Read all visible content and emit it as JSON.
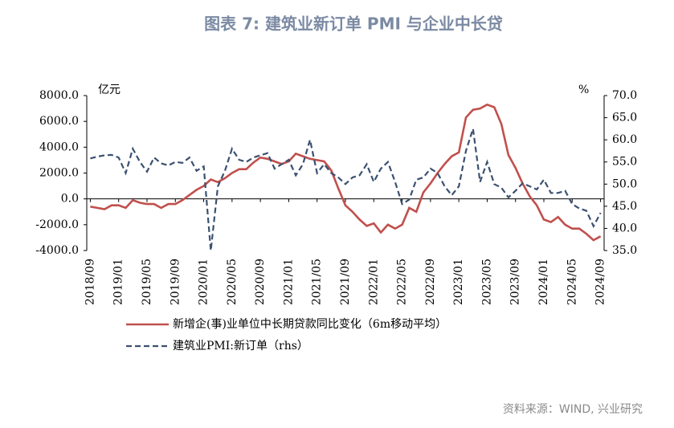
{
  "chart_data": {
    "type": "line",
    "title": "图表 7: 建筑业新订单 PMI 与企业中长贷",
    "y_unit": "亿元",
    "y2_unit": "%",
    "source": "资料来源：WIND, 兴业研究",
    "categories": [
      "2018/09",
      null,
      null,
      null,
      "2019/01",
      null,
      null,
      null,
      "2019/05",
      null,
      null,
      null,
      "2019/09",
      null,
      null,
      null,
      "2020/01",
      null,
      null,
      null,
      "2020/05",
      null,
      null,
      null,
      "2020/09",
      null,
      null,
      null,
      "2021/01",
      null,
      null,
      null,
      "2021/05",
      null,
      null,
      null,
      "2021/09",
      null,
      null,
      null,
      "2022/01",
      null,
      null,
      null,
      "2022/05",
      null,
      null,
      null,
      "2022/09",
      null,
      null,
      null,
      "2023/01",
      null,
      null,
      null,
      "2023/05",
      null,
      null,
      null,
      "2023/09",
      null,
      null,
      null,
      "2024/01",
      null,
      null,
      null,
      "2024/05",
      null,
      null,
      null,
      "2024/09"
    ],
    "series": [
      {
        "name": "新增企(事)业单位中长期贷款同比变化（6m移动平均）",
        "color": "#c0504d",
        "dash": false,
        "values": [
          -600,
          -700,
          -800,
          -500,
          -500,
          -700,
          -100,
          -300,
          -400,
          -400,
          -700,
          -400,
          -400,
          -100,
          300,
          700,
          1000,
          1500,
          1300,
          1600,
          2000,
          2300,
          2300,
          2800,
          3200,
          3100,
          2900,
          2700,
          2900,
          3500,
          3300,
          3100,
          3000,
          2900,
          2200,
          800,
          -500,
          -1000,
          -1600,
          -2100,
          -1900,
          -2600,
          -2000,
          -2300,
          -2000,
          -700,
          -1000,
          500,
          1200,
          2000,
          2700,
          3300,
          3600,
          6300,
          6900,
          7000,
          7300,
          7100,
          5800,
          3400,
          2400,
          1200,
          200,
          -500,
          -1600,
          -1800,
          -1400,
          -2000,
          -2300,
          -2300,
          -2700,
          -3200,
          -2900
        ]
      },
      {
        "name": "建筑业PMI:新订单（rhs）",
        "color": "#3b5170",
        "dash": true,
        "axis": "y2",
        "values": [
          55.8,
          56.2,
          56.5,
          56.6,
          56.0,
          52.5,
          58.0,
          55.0,
          52.8,
          56.0,
          54.7,
          54.2,
          55.0,
          54.8,
          56.0,
          53.0,
          54.0,
          35.0,
          49.5,
          53.0,
          58.0,
          55.5,
          55.0,
          56.0,
          56.5,
          57.0,
          53.5,
          54.5,
          55.5,
          52.0,
          54.5,
          60.0,
          52.5,
          54.5,
          52.5,
          51.5,
          50.0,
          51.5,
          52.0,
          54.5,
          50.5,
          53.5,
          55.0,
          50.5,
          45.5,
          46.5,
          51.0,
          51.5,
          53.5,
          52.5,
          49.5,
          47.5,
          49.5,
          57.5,
          62.5,
          50.5,
          55.0,
          50.0,
          49.2,
          47.0,
          48.5,
          50.2,
          49.5,
          48.8,
          51.0,
          48.0,
          48.0,
          48.5,
          45.5,
          44.5,
          44.0,
          40.5,
          43.5
        ]
      }
    ],
    "ylim": [
      -4000,
      8000
    ],
    "yticks": [
      {
        "value": -4000,
        "label": "-4000.0"
      },
      {
        "value": -2000,
        "label": "-2000.0"
      },
      {
        "value": 0,
        "label": "0.0"
      },
      {
        "value": 2000,
        "label": "2000.0"
      },
      {
        "value": 4000,
        "label": "4000.0"
      },
      {
        "value": 6000,
        "label": "6000.0"
      },
      {
        "value": 8000,
        "label": "8000.0"
      }
    ],
    "y2lim": [
      35,
      70
    ],
    "y2ticks": [
      {
        "value": 35,
        "label": "35.0"
      },
      {
        "value": 40,
        "label": "40.0"
      },
      {
        "value": 45,
        "label": "45.0"
      },
      {
        "value": 50,
        "label": "50.0"
      },
      {
        "value": 55,
        "label": "55.0"
      },
      {
        "value": 60,
        "label": "60.0"
      },
      {
        "value": 65,
        "label": "65.0"
      },
      {
        "value": 70,
        "label": "70.0"
      }
    ]
  }
}
